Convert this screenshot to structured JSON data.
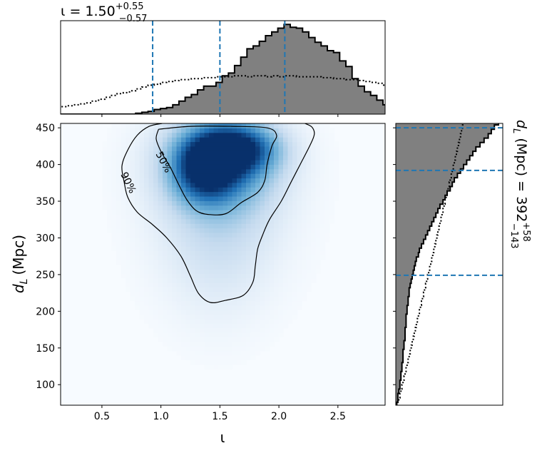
{
  "chart_data": [
    {
      "panel": "joint-density",
      "type": "heatmap",
      "xlabel": "ι",
      "ylabel_main": "d",
      "ylabel_sub": "L",
      "ylabel_unit": "(Mpc)",
      "xlim": [
        0.15,
        2.9
      ],
      "ylim": [
        72,
        456
      ],
      "xticks": [
        0.5,
        1.0,
        1.5,
        2.0,
        2.5
      ],
      "xtick_labels": [
        "0.5",
        "1.0",
        "1.5",
        "2.0",
        "2.5"
      ],
      "yticks": [
        100,
        150,
        200,
        250,
        300,
        350,
        400,
        450
      ],
      "ytick_labels": [
        "100",
        "150",
        "200",
        "250",
        "300",
        "350",
        "400",
        "450"
      ],
      "colormap": "Blues",
      "density_blobs": [
        {
          "x": 1.62,
          "y": 422,
          "sx": 0.24,
          "sy": 22,
          "w": 1.0
        },
        {
          "x": 1.38,
          "y": 392,
          "sx": 0.18,
          "sy": 28,
          "w": 0.85
        },
        {
          "x": 1.5,
          "y": 405,
          "sx": 0.34,
          "sy": 45,
          "w": 0.75
        },
        {
          "x": 1.5,
          "y": 340,
          "sx": 0.38,
          "sy": 70,
          "w": 0.28
        },
        {
          "x": 1.48,
          "y": 255,
          "sx": 0.32,
          "sy": 65,
          "w": 0.1
        }
      ],
      "contours": [
        {
          "label": "50%",
          "points": [
            [
              0.98,
              448
            ],
            [
              1.25,
              452
            ],
            [
              1.6,
              452
            ],
            [
              1.9,
              450
            ],
            [
              1.98,
              440
            ],
            [
              1.94,
              425
            ],
            [
              1.9,
              400
            ],
            [
              1.88,
              378
            ],
            [
              1.82,
              362
            ],
            [
              1.68,
              348
            ],
            [
              1.55,
              333
            ],
            [
              1.4,
              332
            ],
            [
              1.3,
              337
            ],
            [
              1.22,
              352
            ],
            [
              1.15,
              373
            ],
            [
              1.08,
              396
            ],
            [
              1.0,
              418
            ],
            [
              0.96,
              435
            ],
            [
              0.98,
              448
            ]
          ]
        },
        {
          "label": "90%",
          "points": [
            [
              1.01,
              456
            ],
            [
              0.9,
              452
            ],
            [
              0.8,
              440
            ],
            [
              0.72,
              420
            ],
            [
              0.67,
              398
            ],
            [
              0.69,
              375
            ],
            [
              0.72,
              355
            ],
            [
              0.8,
              335
            ],
            [
              0.93,
              318
            ],
            [
              1.05,
              300
            ],
            [
              1.17,
              275
            ],
            [
              1.25,
              248
            ],
            [
              1.32,
              224
            ],
            [
              1.42,
              212
            ],
            [
              1.55,
              215
            ],
            [
              1.7,
              222
            ],
            [
              1.78,
              240
            ],
            [
              1.8,
              262
            ],
            [
              1.82,
              285
            ],
            [
              1.86,
              303
            ],
            [
              1.92,
              325
            ],
            [
              2.02,
              350
            ],
            [
              2.1,
              375
            ],
            [
              2.18,
              400
            ],
            [
              2.26,
              425
            ],
            [
              2.3,
              441
            ],
            [
              2.28,
              451
            ],
            [
              2.22,
              456
            ]
          ]
        }
      ],
      "contour_labels": [
        {
          "text": "50%",
          "x": 1.02,
          "y": 403,
          "angle": 62
        },
        {
          "text": "90%",
          "x": 0.72,
          "y": 375,
          "angle": 64
        }
      ]
    },
    {
      "panel": "iota-marginal",
      "type": "histogram",
      "annotation": {
        "prefix": "ι = 1.50",
        "sup": "+0.55",
        "sub": "−0.57"
      },
      "xlim": [
        0.15,
        2.9
      ],
      "median": 1.5,
      "lower": 0.93,
      "upper": 2.05,
      "bin_start": 0.0,
      "bin_width": 0.0524,
      "posterior": [
        0,
        0,
        0,
        0,
        0,
        0,
        0,
        0,
        0,
        0,
        0,
        0,
        0,
        0,
        0,
        0.01,
        0.02,
        0.03,
        0.05,
        0.06,
        0.07,
        0.1,
        0.14,
        0.18,
        0.21,
        0.26,
        0.3,
        0.3,
        0.34,
        0.41,
        0.44,
        0.52,
        0.61,
        0.7,
        0.73,
        0.78,
        0.84,
        0.88,
        0.92,
        0.96,
        0.93,
        0.92,
        0.88,
        0.82,
        0.77,
        0.73,
        0.68,
        0.66,
        0.57,
        0.51,
        0.38,
        0.3,
        0.24,
        0.2,
        0.15,
        0.1,
        0.08,
        0.05,
        0.04,
        0.03,
        0.02,
        0.02,
        0.01,
        0.01,
        0,
        0,
        0,
        0,
        0,
        0,
        0,
        0,
        0,
        0,
        0,
        0
      ],
      "prior_dotted": [
        0.05,
        0.06,
        0.07,
        0.08,
        0.09,
        0.1,
        0.11,
        0.12,
        0.14,
        0.16,
        0.18,
        0.2,
        0.22,
        0.23,
        0.25,
        0.27,
        0.29,
        0.31,
        0.32,
        0.34,
        0.35,
        0.36,
        0.37,
        0.37,
        0.38,
        0.38,
        0.39,
        0.39,
        0.4,
        0.4,
        0.4,
        0.41,
        0.41,
        0.4,
        0.41,
        0.41,
        0.4,
        0.41,
        0.4,
        0.41,
        0.41,
        0.4,
        0.4,
        0.4,
        0.4,
        0.39,
        0.39,
        0.38,
        0.38,
        0.37,
        0.37,
        0.36,
        0.35,
        0.34,
        0.33,
        0.31,
        0.3,
        0.28,
        0.26,
        0.25,
        0.23,
        0.21,
        0.19,
        0.17,
        0.15,
        0.13,
        0.11,
        0.1,
        0.09,
        0.08,
        0.07,
        0.06,
        0.05,
        0.04,
        0.04,
        0.03
      ]
    },
    {
      "panel": "dL-marginal",
      "type": "histogram",
      "annotation": {
        "prefix": "d",
        "sub_l": "L",
        "mid": " (Mpc) = 392",
        "sup": "+58",
        "sub": "−143"
      },
      "ylim": [
        72,
        456
      ],
      "median": 392,
      "lower": 249,
      "upper": 450,
      "bin_start": 70,
      "bin_width": 6,
      "posterior": [
        0.01,
        0.02,
        0.02,
        0.03,
        0.04,
        0.04,
        0.05,
        0.05,
        0.06,
        0.06,
        0.07,
        0.07,
        0.07,
        0.08,
        0.08,
        0.09,
        0.09,
        0.09,
        0.1,
        0.1,
        0.1,
        0.11,
        0.11,
        0.12,
        0.12,
        0.13,
        0.13,
        0.14,
        0.15,
        0.16,
        0.17,
        0.18,
        0.19,
        0.2,
        0.22,
        0.23,
        0.25,
        0.27,
        0.29,
        0.31,
        0.33,
        0.35,
        0.37,
        0.39,
        0.41,
        0.43,
        0.46,
        0.48,
        0.5,
        0.53,
        0.55,
        0.57,
        0.6,
        0.63,
        0.66,
        0.69,
        0.72,
        0.75,
        0.78,
        0.82,
        0.86,
        0.9,
        0.93,
        0.96,
        1.0,
        1.0
      ],
      "prior_dotted": [
        0.02,
        0.03,
        0.04,
        0.05,
        0.06,
        0.07,
        0.08,
        0.09,
        0.1,
        0.11,
        0.12,
        0.13,
        0.14,
        0.15,
        0.16,
        0.17,
        0.18,
        0.19,
        0.2,
        0.21,
        0.22,
        0.23,
        0.24,
        0.25,
        0.26,
        0.27,
        0.28,
        0.29,
        0.3,
        0.31,
        0.32,
        0.33,
        0.34,
        0.35,
        0.36,
        0.37,
        0.38,
        0.39,
        0.4,
        0.41,
        0.42,
        0.43,
        0.44,
        0.45,
        0.46,
        0.47,
        0.48,
        0.49,
        0.5,
        0.51,
        0.52,
        0.53,
        0.54,
        0.55,
        0.56,
        0.57,
        0.58,
        0.59,
        0.6,
        0.61,
        0.62,
        0.63,
        0.64,
        0.65,
        0.66,
        0.67
      ]
    }
  ],
  "colors": {
    "hist_fill": "#808080",
    "hist_edge": "#000000",
    "quantile_line": "#1f77b4",
    "contour": "#000000",
    "cmap_low": "#f7fbff",
    "cmap_high": "#08306b"
  }
}
